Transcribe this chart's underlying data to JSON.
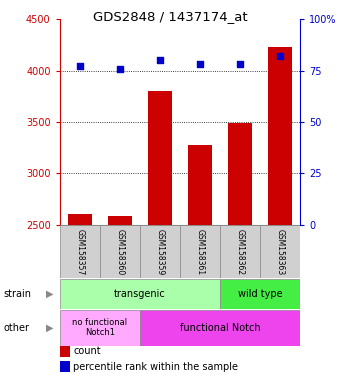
{
  "title": "GDS2848 / 1437174_at",
  "samples": [
    "GSM158357",
    "GSM158360",
    "GSM158359",
    "GSM158361",
    "GSM158362",
    "GSM158363"
  ],
  "counts": [
    2600,
    2580,
    3800,
    3280,
    3490,
    4230
  ],
  "percentiles": [
    77,
    76,
    80,
    78,
    78,
    82
  ],
  "ylim_left": [
    2500,
    4500
  ],
  "ylim_right": [
    0,
    100
  ],
  "yticks_left": [
    2500,
    3000,
    3500,
    4000,
    4500
  ],
  "yticks_right": [
    0,
    25,
    50,
    75,
    100
  ],
  "ytick_right_labels": [
    "0",
    "25",
    "50",
    "75",
    "100%"
  ],
  "bar_color": "#cc0000",
  "dot_color": "#0000cc",
  "strain_transgenic_color": "#aaffaa",
  "strain_wildtype_color": "#44ee44",
  "other_nofunc_color": "#ffaaff",
  "other_func_color": "#ee44ee",
  "grid_color": "black",
  "left_axis_color": "#cc0000",
  "right_axis_color": "#0000cc",
  "sample_box_color": "#d0d0d0"
}
